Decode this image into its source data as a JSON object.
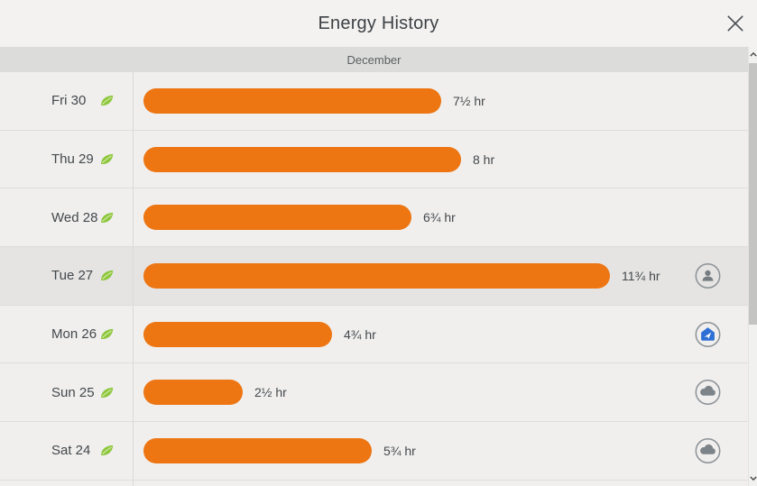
{
  "window": {
    "title": "Energy History"
  },
  "month": {
    "label": "December"
  },
  "chart_data": {
    "type": "bar",
    "orientation": "horizontal",
    "title": "Energy History",
    "group_label": "December",
    "categories": [
      "Fri 30",
      "Thu 29",
      "Wed 28",
      "Tue 27",
      "Mon 26",
      "Sun 25",
      "Sat 24"
    ],
    "values": [
      7.5,
      8,
      6.75,
      11.75,
      4.75,
      2.5,
      5.75
    ],
    "value_labels": [
      "7½ hr",
      "8 hr",
      "6¾ hr",
      "11¾ hr",
      "4¾ hr",
      "2½ hr",
      "5¾ hr"
    ],
    "unit": "hr",
    "xlim": [
      0,
      12
    ],
    "bar_color": "#ED7512",
    "grid": false,
    "legend": "none"
  },
  "rows": [
    {
      "day": "Fri 30",
      "leaf": true,
      "hours": 7.5,
      "duration_label": "7½ hr",
      "right_icon": null,
      "highlighted": false
    },
    {
      "day": "Thu 29",
      "leaf": true,
      "hours": 8,
      "duration_label": "8 hr",
      "right_icon": null,
      "highlighted": false
    },
    {
      "day": "Wed 28",
      "leaf": true,
      "hours": 6.75,
      "duration_label": "6¾ hr",
      "right_icon": null,
      "highlighted": false
    },
    {
      "day": "Tue 27",
      "leaf": true,
      "hours": 11.75,
      "duration_label": "11¾ hr",
      "right_icon": "person",
      "highlighted": true
    },
    {
      "day": "Mon 26",
      "leaf": true,
      "hours": 4.75,
      "duration_label": "4¾ hr",
      "right_icon": "home",
      "highlighted": false
    },
    {
      "day": "Sun 25",
      "leaf": true,
      "hours": 2.5,
      "duration_label": "2½ hr",
      "right_icon": "cloud",
      "highlighted": false
    },
    {
      "day": "Sat 24",
      "leaf": true,
      "hours": 5.75,
      "duration_label": "5¾ hr",
      "right_icon": "cloud",
      "highlighted": false
    }
  ],
  "icons": {
    "close": "close-x",
    "leaf": "nest-leaf",
    "person": "person-in-circle",
    "home": "blue-house-with-arrow-in-circle",
    "cloud": "cloud-in-circle",
    "scroll_up": "chevron-up",
    "scroll_down": "chevron-down"
  },
  "colors": {
    "accent_orange": "#ED7512",
    "leaf_green": "#8DC63F",
    "home_blue": "#2E6FD6",
    "icon_gray": "#7A8187",
    "header_bg": "#F3F2F0",
    "month_bar_bg": "#DCDCDA",
    "row_bg": "#F0EFED",
    "row_highlight_bg": "#E5E4E2",
    "text_primary": "#43484D"
  }
}
